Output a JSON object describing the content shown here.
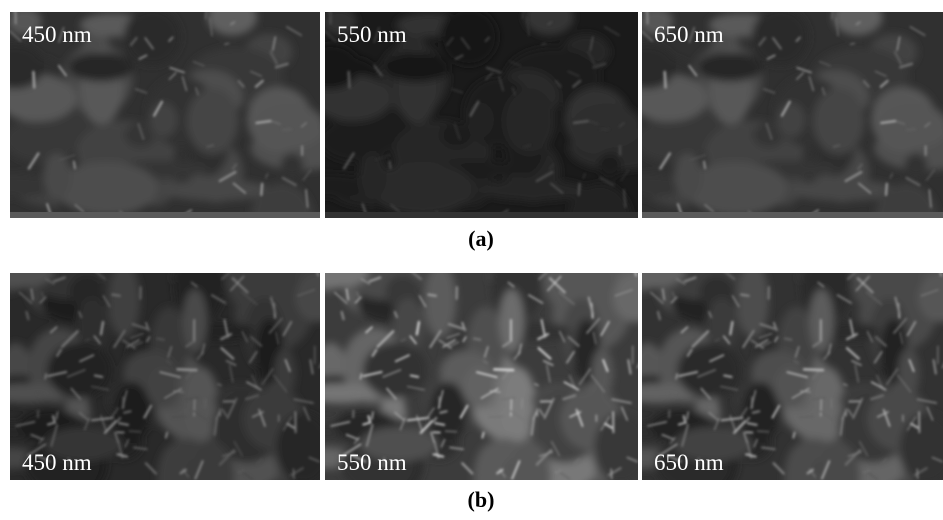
{
  "figure": {
    "rows": [
      {
        "caption": "(a)",
        "panels": [
          {
            "label": "450 nm"
          },
          {
            "label": "550 nm"
          },
          {
            "label": "650 nm"
          }
        ]
      },
      {
        "caption": "(b)",
        "panels": [
          {
            "label": "450 nm"
          },
          {
            "label": "550 nm"
          },
          {
            "label": "650 nm"
          }
        ]
      }
    ]
  }
}
